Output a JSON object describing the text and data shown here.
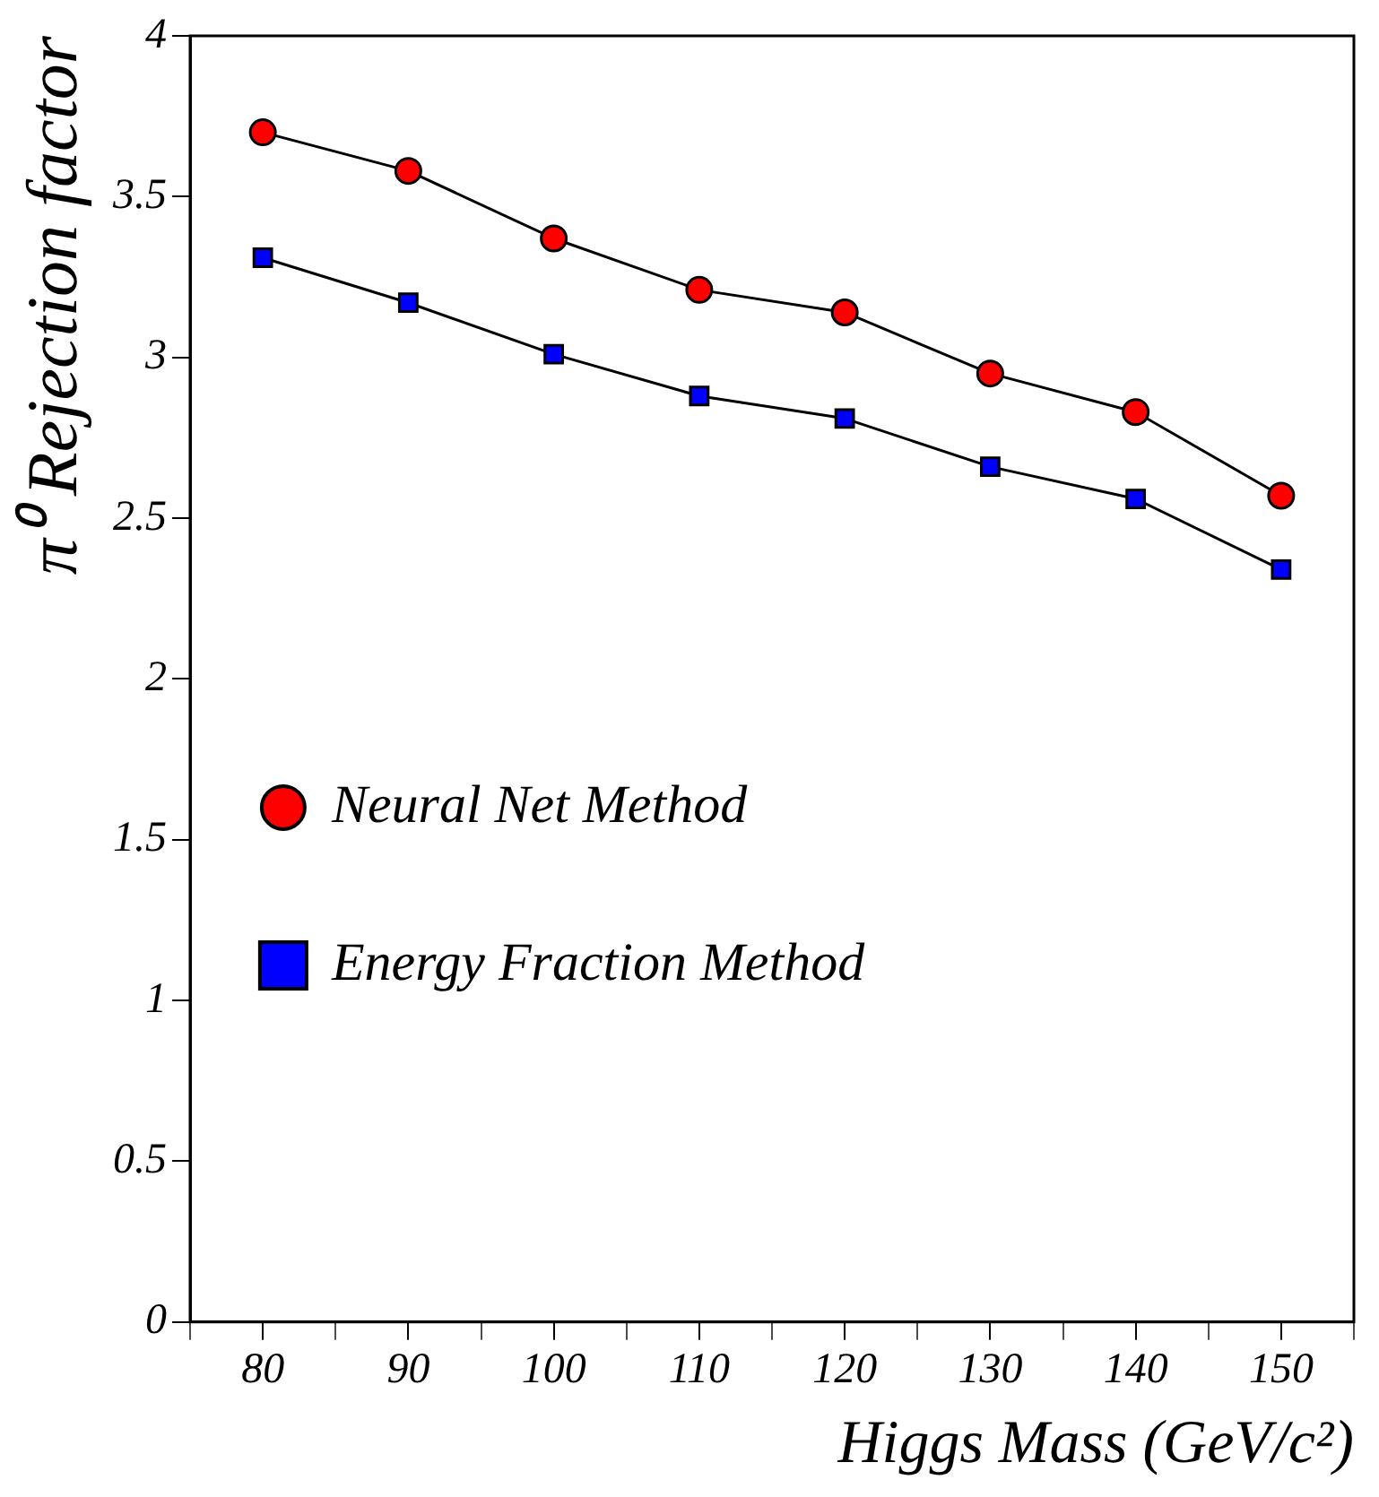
{
  "chart_data": {
    "type": "line",
    "xlabel": "Higgs Mass (GeV/c²)",
    "ylabel": "π⁰ Rejection factor",
    "x": [
      80,
      90,
      100,
      110,
      120,
      130,
      140,
      150
    ],
    "series": [
      {
        "name": "Neural Net Method",
        "color": "#ff0000",
        "marker": "circle",
        "values": [
          3.7,
          3.58,
          3.37,
          3.21,
          3.14,
          2.95,
          2.83,
          2.57
        ]
      },
      {
        "name": "Energy Fraction Method",
        "color": "#0000ff",
        "marker": "square",
        "values": [
          3.31,
          3.17,
          3.01,
          2.88,
          2.81,
          2.66,
          2.56,
          2.34
        ]
      }
    ],
    "xlim": [
      75,
      155
    ],
    "xticks": [
      {
        "value": 75,
        "label": null
      },
      80,
      {
        "value": 85,
        "label": null
      },
      90,
      {
        "value": 95,
        "label": null
      },
      100,
      {
        "value": 105,
        "label": null
      },
      110,
      {
        "value": 115,
        "label": null
      },
      120,
      {
        "value": 125,
        "label": null
      },
      130,
      {
        "value": 135,
        "label": null
      },
      140,
      {
        "value": 145,
        "label": null
      },
      150,
      {
        "value": 155,
        "label": null
      }
    ],
    "ylim": [
      0,
      4
    ],
    "yticks": [
      0,
      0.5,
      1,
      1.5,
      2,
      2.5,
      3,
      3.5,
      4
    ],
    "grid": false,
    "legend": "left",
    "line_style": "solid"
  }
}
